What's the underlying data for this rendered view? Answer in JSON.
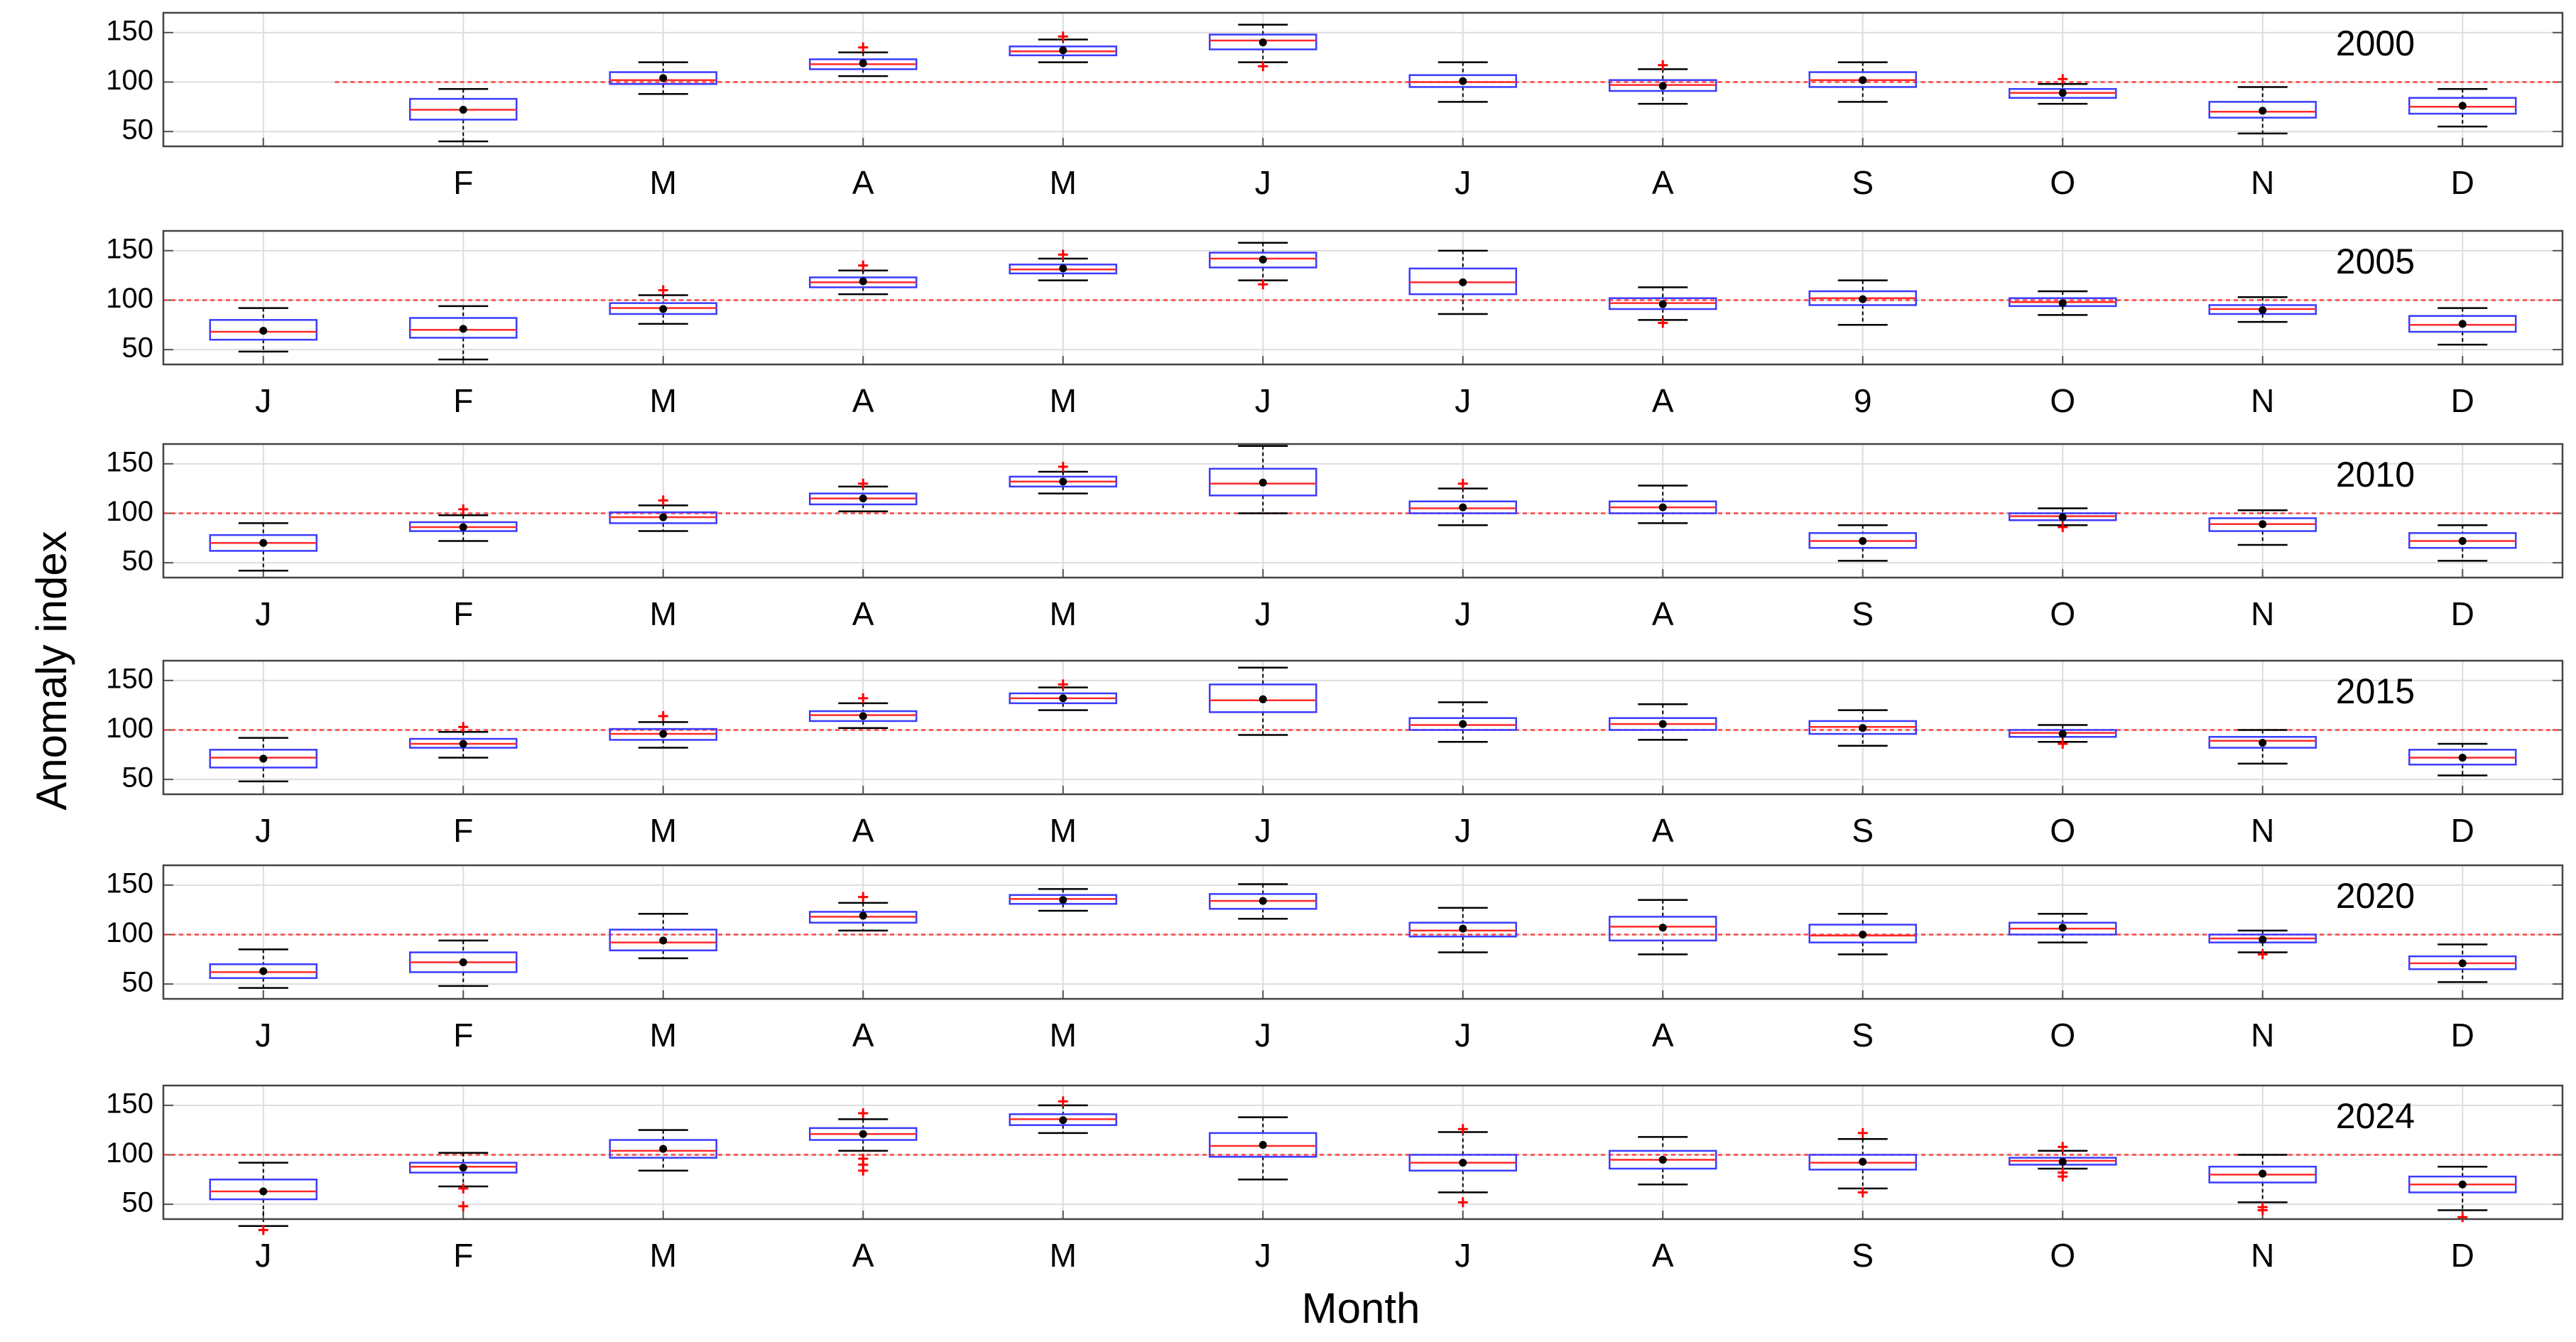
{
  "chart_data": {
    "type": "box",
    "ylabel": "Anomaly index",
    "xlabel": "Month",
    "grid": true,
    "reference_line": 100,
    "ylim": [
      35,
      170
    ],
    "yticks": [
      50,
      100,
      150
    ],
    "colors": {
      "box": "#3b3bff",
      "median": "#ff2a2a",
      "reference": "#ff4040",
      "outlier": "#ff0000",
      "whisker": "#000000",
      "mean": "#000000",
      "grid": "#dddddd"
    },
    "panels": [
      {
        "year": "2000",
        "months": [
          null,
          {
            "label": "F",
            "min": 40,
            "q1": 62,
            "median": 72,
            "q3": 83,
            "max": 93,
            "mean": 72,
            "outliers": []
          },
          {
            "label": "M",
            "min": 88,
            "q1": 98,
            "median": 102,
            "q3": 110,
            "max": 120,
            "mean": 104,
            "outliers": []
          },
          {
            "label": "A",
            "min": 106,
            "q1": 113,
            "median": 118,
            "q3": 123,
            "max": 130,
            "mean": 119,
            "outliers": [
              135
            ]
          },
          {
            "label": "M",
            "min": 120,
            "q1": 127,
            "median": 131,
            "q3": 136,
            "max": 143,
            "mean": 132,
            "outliers": [
              146
            ]
          },
          {
            "label": "J",
            "min": 120,
            "q1": 133,
            "median": 142,
            "q3": 148,
            "max": 158,
            "mean": 140,
            "outliers": [
              116
            ]
          },
          {
            "label": "J",
            "min": 80,
            "q1": 95,
            "median": 100,
            "q3": 107,
            "max": 120,
            "mean": 101,
            "outliers": []
          },
          {
            "label": "A",
            "min": 78,
            "q1": 91,
            "median": 97,
            "q3": 102,
            "max": 113,
            "mean": 96,
            "outliers": [
              117
            ]
          },
          {
            "label": "S",
            "min": 80,
            "q1": 95,
            "median": 102,
            "q3": 110,
            "max": 120,
            "mean": 102,
            "outliers": []
          },
          {
            "label": "O",
            "min": 78,
            "q1": 84,
            "median": 89,
            "q3": 93,
            "max": 98,
            "mean": 89,
            "outliers": [
              103
            ]
          },
          {
            "label": "N",
            "min": 48,
            "q1": 64,
            "median": 70,
            "q3": 80,
            "max": 95,
            "mean": 71,
            "outliers": []
          },
          {
            "label": "D",
            "min": 55,
            "q1": 68,
            "median": 75,
            "q3": 84,
            "max": 93,
            "mean": 76,
            "outliers": []
          }
        ]
      },
      {
        "year": "2005",
        "months": [
          {
            "label": "J",
            "min": 48,
            "q1": 60,
            "median": 68,
            "q3": 80,
            "max": 92,
            "mean": 69,
            "outliers": []
          },
          {
            "label": "F",
            "min": 40,
            "q1": 62,
            "median": 70,
            "q3": 82,
            "max": 94,
            "mean": 71,
            "outliers": []
          },
          {
            "label": "M",
            "min": 76,
            "q1": 86,
            "median": 92,
            "q3": 97,
            "max": 105,
            "mean": 91,
            "outliers": [
              110
            ]
          },
          {
            "label": "A",
            "min": 106,
            "q1": 113,
            "median": 118,
            "q3": 123,
            "max": 130,
            "mean": 119,
            "outliers": [
              135
            ]
          },
          {
            "label": "M",
            "min": 120,
            "q1": 127,
            "median": 131,
            "q3": 136,
            "max": 142,
            "mean": 132,
            "outliers": [
              146
            ]
          },
          {
            "label": "J",
            "min": 120,
            "q1": 133,
            "median": 142,
            "q3": 148,
            "max": 158,
            "mean": 141,
            "outliers": [
              116
            ]
          },
          {
            "label": "J",
            "min": 86,
            "q1": 106,
            "median": 118,
            "q3": 132,
            "max": 150,
            "mean": 118,
            "outliers": []
          },
          {
            "label": "A",
            "min": 80,
            "q1": 91,
            "median": 97,
            "q3": 102,
            "max": 113,
            "mean": 96,
            "outliers": [
              77
            ]
          },
          {
            "label": "9",
            "min": 75,
            "q1": 95,
            "median": 102,
            "q3": 109,
            "max": 120,
            "mean": 101,
            "outliers": []
          },
          {
            "label": "O",
            "min": 85,
            "q1": 94,
            "median": 98,
            "q3": 102,
            "max": 109,
            "mean": 97,
            "outliers": []
          },
          {
            "label": "N",
            "min": 78,
            "q1": 86,
            "median": 91,
            "q3": 95,
            "max": 103,
            "mean": 90,
            "outliers": []
          },
          {
            "label": "D",
            "min": 55,
            "q1": 68,
            "median": 75,
            "q3": 84,
            "max": 92,
            "mean": 76,
            "outliers": []
          }
        ]
      },
      {
        "year": "2010",
        "months": [
          {
            "label": "J",
            "min": 42,
            "q1": 62,
            "median": 70,
            "q3": 78,
            "max": 90,
            "mean": 70,
            "outliers": []
          },
          {
            "label": "F",
            "min": 72,
            "q1": 82,
            "median": 86,
            "q3": 91,
            "max": 98,
            "mean": 86,
            "outliers": [
              104
            ]
          },
          {
            "label": "M",
            "min": 82,
            "q1": 90,
            "median": 96,
            "q3": 101,
            "max": 108,
            "mean": 96,
            "outliers": [
              113
            ]
          },
          {
            "label": "A",
            "min": 102,
            "q1": 109,
            "median": 115,
            "q3": 120,
            "max": 127,
            "mean": 115,
            "outliers": [
              130
            ]
          },
          {
            "label": "M",
            "min": 120,
            "q1": 127,
            "median": 132,
            "q3": 137,
            "max": 142,
            "mean": 132,
            "outliers": [
              147
            ]
          },
          {
            "label": "J",
            "min": 100,
            "q1": 118,
            "median": 130,
            "q3": 145,
            "max": 168,
            "mean": 131,
            "outliers": []
          },
          {
            "label": "J",
            "min": 88,
            "q1": 100,
            "median": 105,
            "q3": 112,
            "max": 125,
            "mean": 106,
            "outliers": [
              130
            ]
          },
          {
            "label": "A",
            "min": 90,
            "q1": 100,
            "median": 106,
            "q3": 112,
            "max": 128,
            "mean": 106,
            "outliers": []
          },
          {
            "label": "S",
            "min": 52,
            "q1": 65,
            "median": 72,
            "q3": 80,
            "max": 88,
            "mean": 72,
            "outliers": []
          },
          {
            "label": "O",
            "min": 88,
            "q1": 93,
            "median": 97,
            "q3": 100,
            "max": 105,
            "mean": 96,
            "outliers": [
              86
            ]
          },
          {
            "label": "N",
            "min": 68,
            "q1": 82,
            "median": 89,
            "q3": 95,
            "max": 103,
            "mean": 89,
            "outliers": []
          },
          {
            "label": "D",
            "min": 52,
            "q1": 65,
            "median": 72,
            "q3": 80,
            "max": 88,
            "mean": 72,
            "outliers": []
          }
        ]
      },
      {
        "year": "2015",
        "months": [
          {
            "label": "J",
            "min": 48,
            "q1": 62,
            "median": 72,
            "q3": 80,
            "max": 92,
            "mean": 71,
            "outliers": []
          },
          {
            "label": "F",
            "min": 72,
            "q1": 82,
            "median": 86,
            "q3": 91,
            "max": 98,
            "mean": 86,
            "outliers": [
              103
            ]
          },
          {
            "label": "M",
            "min": 82,
            "q1": 90,
            "median": 96,
            "q3": 101,
            "max": 108,
            "mean": 96,
            "outliers": [
              114
            ]
          },
          {
            "label": "A",
            "min": 102,
            "q1": 109,
            "median": 115,
            "q3": 119,
            "max": 127,
            "mean": 114,
            "outliers": [
              132
            ]
          },
          {
            "label": "M",
            "min": 120,
            "q1": 127,
            "median": 132,
            "q3": 137,
            "max": 143,
            "mean": 132,
            "outliers": [
              146
            ]
          },
          {
            "label": "J",
            "min": 95,
            "q1": 118,
            "median": 130,
            "q3": 146,
            "max": 163,
            "mean": 131,
            "outliers": []
          },
          {
            "label": "J",
            "min": 88,
            "q1": 100,
            "median": 105,
            "q3": 112,
            "max": 128,
            "mean": 106,
            "outliers": []
          },
          {
            "label": "A",
            "min": 90,
            "q1": 100,
            "median": 106,
            "q3": 112,
            "max": 126,
            "mean": 106,
            "outliers": []
          },
          {
            "label": "S",
            "min": 84,
            "q1": 96,
            "median": 103,
            "q3": 109,
            "max": 120,
            "mean": 102,
            "outliers": []
          },
          {
            "label": "O",
            "min": 88,
            "q1": 93,
            "median": 97,
            "q3": 100,
            "max": 105,
            "mean": 96,
            "outliers": [
              86
            ]
          },
          {
            "label": "N",
            "min": 66,
            "q1": 82,
            "median": 89,
            "q3": 93,
            "max": 100,
            "mean": 87,
            "outliers": []
          },
          {
            "label": "D",
            "min": 54,
            "q1": 65,
            "median": 72,
            "q3": 80,
            "max": 86,
            "mean": 72,
            "outliers": []
          }
        ]
      },
      {
        "year": "2020",
        "months": [
          {
            "label": "J",
            "min": 46,
            "q1": 56,
            "median": 62,
            "q3": 70,
            "max": 85,
            "mean": 63,
            "outliers": []
          },
          {
            "label": "F",
            "min": 48,
            "q1": 62,
            "median": 72,
            "q3": 82,
            "max": 94,
            "mean": 72,
            "outliers": []
          },
          {
            "label": "M",
            "min": 76,
            "q1": 84,
            "median": 92,
            "q3": 105,
            "max": 121,
            "mean": 94,
            "outliers": []
          },
          {
            "label": "A",
            "min": 104,
            "q1": 112,
            "median": 118,
            "q3": 123,
            "max": 132,
            "mean": 119,
            "outliers": [
              138
            ]
          },
          {
            "label": "M",
            "min": 124,
            "q1": 131,
            "median": 136,
            "q3": 140,
            "max": 146,
            "mean": 135,
            "outliers": []
          },
          {
            "label": "J",
            "min": 116,
            "q1": 126,
            "median": 134,
            "q3": 141,
            "max": 151,
            "mean": 134,
            "outliers": []
          },
          {
            "label": "J",
            "min": 82,
            "q1": 98,
            "median": 104,
            "q3": 112,
            "max": 127,
            "mean": 106,
            "outliers": []
          },
          {
            "label": "A",
            "min": 80,
            "q1": 94,
            "median": 108,
            "q3": 118,
            "max": 135,
            "mean": 107,
            "outliers": []
          },
          {
            "label": "S",
            "min": 80,
            "q1": 92,
            "median": 99,
            "q3": 110,
            "max": 121,
            "mean": 100,
            "outliers": []
          },
          {
            "label": "O",
            "min": 92,
            "q1": 100,
            "median": 106,
            "q3": 112,
            "max": 121,
            "mean": 107,
            "outliers": []
          },
          {
            "label": "N",
            "min": 82,
            "q1": 92,
            "median": 96,
            "q3": 100,
            "max": 104,
            "mean": 95,
            "outliers": [
              80
            ]
          },
          {
            "label": "D",
            "min": 52,
            "q1": 65,
            "median": 71,
            "q3": 78,
            "max": 90,
            "mean": 71,
            "outliers": []
          }
        ]
      },
      {
        "year": "2024",
        "months": [
          {
            "label": "J",
            "min": 28,
            "q1": 55,
            "median": 63,
            "q3": 75,
            "max": 92,
            "mean": 63,
            "outliers": [
              24
            ]
          },
          {
            "label": "F",
            "min": 68,
            "q1": 82,
            "median": 88,
            "q3": 92,
            "max": 102,
            "mean": 87,
            "outliers": [
              48,
              66
            ]
          },
          {
            "label": "M",
            "min": 84,
            "q1": 97,
            "median": 104,
            "q3": 115,
            "max": 125,
            "mean": 106,
            "outliers": []
          },
          {
            "label": "A",
            "min": 104,
            "q1": 115,
            "median": 121,
            "q3": 127,
            "max": 136,
            "mean": 121,
            "outliers": [
              84,
              90,
              96,
              142
            ]
          },
          {
            "label": "M",
            "min": 122,
            "q1": 130,
            "median": 136,
            "q3": 141,
            "max": 150,
            "mean": 135,
            "outliers": [
              154
            ]
          },
          {
            "label": "J",
            "min": 75,
            "q1": 98,
            "median": 109,
            "q3": 122,
            "max": 138,
            "mean": 110,
            "outliers": []
          },
          {
            "label": "J",
            "min": 62,
            "q1": 84,
            "median": 92,
            "q3": 100,
            "max": 123,
            "mean": 92,
            "outliers": [
              52,
              126
            ]
          },
          {
            "label": "A",
            "min": 70,
            "q1": 86,
            "median": 95,
            "q3": 104,
            "max": 118,
            "mean": 95,
            "outliers": []
          },
          {
            "label": "S",
            "min": 66,
            "q1": 85,
            "median": 92,
            "q3": 100,
            "max": 116,
            "mean": 93,
            "outliers": [
              62,
              122
            ]
          },
          {
            "label": "O",
            "min": 86,
            "q1": 90,
            "median": 94,
            "q3": 97,
            "max": 104,
            "mean": 93,
            "outliers": [
              78,
              82,
              108
            ]
          },
          {
            "label": "N",
            "min": 52,
            "q1": 72,
            "median": 80,
            "q3": 88,
            "max": 100,
            "mean": 81,
            "outliers": [
              44,
              47
            ]
          },
          {
            "label": "D",
            "min": 44,
            "q1": 62,
            "median": 70,
            "q3": 78,
            "max": 88,
            "mean": 70,
            "outliers": [
              37
            ]
          }
        ]
      }
    ]
  }
}
